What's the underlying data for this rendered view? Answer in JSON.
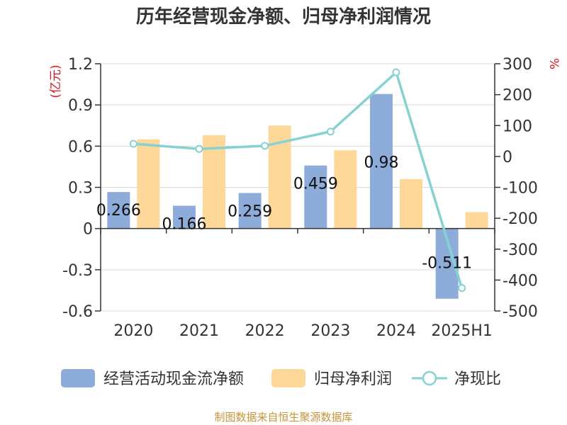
{
  "chart_data": {
    "type": "bar",
    "title": "历年经营现金净额、归母净利润情况",
    "categories": [
      "2020",
      "2021",
      "2022",
      "2023",
      "2024",
      "2025H1"
    ],
    "y_left": {
      "unit": "(亿元)",
      "ylim": [
        -0.6,
        1.2
      ],
      "ticks": [
        "1.2",
        "0.9",
        "0.6",
        "0.3",
        "0",
        "-0.3",
        "-0.6"
      ],
      "tick_values": [
        1.2,
        0.9,
        0.6,
        0.3,
        0,
        -0.3,
        -0.6
      ]
    },
    "y_right": {
      "unit": "%",
      "ylim": [
        -500,
        300
      ],
      "ticks": [
        "300",
        "200",
        "100",
        "0",
        "-100",
        "-200",
        "-300",
        "-400",
        "-500"
      ],
      "tick_values": [
        300,
        200,
        100,
        0,
        -100,
        -200,
        -300,
        -400,
        -500
      ]
    },
    "series": [
      {
        "name": "经营活动现金流净额",
        "type": "bar",
        "axis": "left",
        "values": [
          0.266,
          0.166,
          0.259,
          0.459,
          0.98,
          -0.511
        ],
        "labels": [
          "0.266",
          "0.166",
          "0.259",
          "0.459",
          "0.98",
          "-0.511"
        ]
      },
      {
        "name": "归母净利润",
        "type": "bar",
        "axis": "left",
        "values": [
          0.65,
          0.68,
          0.75,
          0.57,
          0.36,
          0.12
        ]
      },
      {
        "name": "净现比",
        "type": "line",
        "axis": "right",
        "values": [
          40.9,
          24.4,
          34.5,
          80.5,
          272.2,
          -425.8
        ]
      }
    ],
    "grid": true,
    "legend": "bottom",
    "colors": {
      "bar1": "#8EACDA",
      "bar2": "#FDD898",
      "line": "#86D2D2",
      "title": "#333333",
      "axis_text": "#333333",
      "unit_red": "#D9161C",
      "source": "#C4953B",
      "grid": "#D9D9D9"
    }
  },
  "source_text": "制图数据来自恒生聚源数据库"
}
